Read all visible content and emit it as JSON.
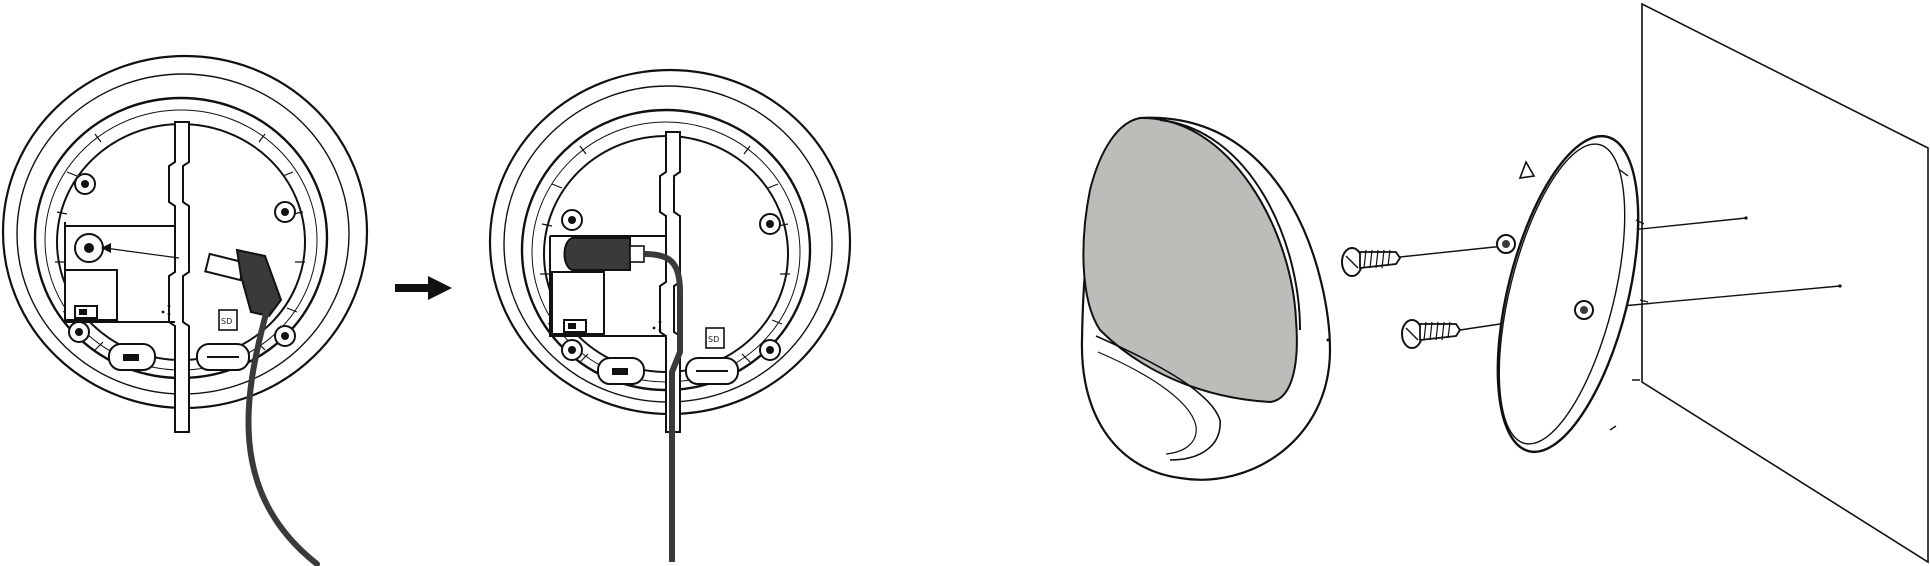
{
  "figure": {
    "panels": [
      {
        "id": "step-1",
        "subject": "base-open-with-plug"
      },
      {
        "id": "arrow",
        "subject": "next-step-arrow"
      },
      {
        "id": "step-2",
        "subject": "base-cable-routed"
      },
      {
        "id": "step-3",
        "subject": "exploded-wall-mount"
      }
    ],
    "labels": {
      "sd_slot_label": "SD"
    },
    "colors": {
      "line": "#111111",
      "cable": "#3a3a3a",
      "lens_fill": "#bdbcb8",
      "paper": "#ffffff"
    },
    "icons": [
      "plug-icon",
      "arrow-right-icon",
      "screw-icon",
      "triangle-marker-icon"
    ]
  }
}
